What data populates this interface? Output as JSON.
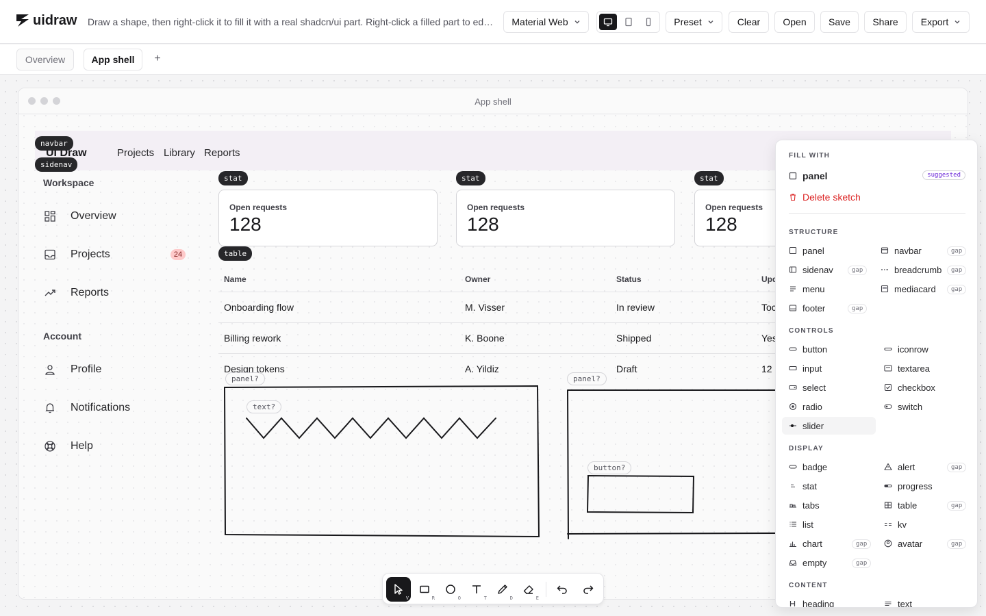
{
  "app": {
    "logo_text": "uidraw",
    "tagline": "Draw a shape, then right-click it to fill it with a real shadcn/ui part. Right-click a filled part to edit…",
    "theme_select": "Material Web",
    "preset_label": "Preset",
    "clear_label": "Clear",
    "open_label": "Open",
    "save_label": "Save",
    "share_label": "Share",
    "export_label": "Export"
  },
  "page_tabs": [
    {
      "label": "Overview",
      "active": false
    },
    {
      "label": "App shell",
      "active": true
    }
  ],
  "add_tab_label": "+",
  "frame": {
    "title": "App shell"
  },
  "mock": {
    "brand": "UI Draw",
    "nav_links": [
      "Projects",
      "Library",
      "Reports"
    ],
    "tags": {
      "navbar": "navbar",
      "sidenav": "sidenav",
      "stat": "stat",
      "table": "table"
    },
    "sidenav": {
      "workspace_heading": "Workspace",
      "workspace_items": [
        {
          "label": "Overview",
          "icon": "grid-icon"
        },
        {
          "label": "Projects",
          "icon": "inbox-icon"
        },
        {
          "label": "Reports",
          "icon": "trending-up-icon"
        }
      ],
      "projects_count": "24",
      "account_heading": "Account",
      "account_items": [
        {
          "label": "Profile",
          "icon": "user-icon"
        },
        {
          "label": "Notifications",
          "icon": "bell-icon"
        },
        {
          "label": "Help",
          "icon": "lifebuoy-icon"
        }
      ]
    },
    "stats": [
      {
        "label": "Open requests",
        "value": "128"
      },
      {
        "label": "Open requests",
        "value": "128"
      },
      {
        "label": "Open requests",
        "value": "128"
      }
    ],
    "table": {
      "columns": [
        "Name",
        "Owner",
        "Status",
        "Upd"
      ],
      "rows": [
        [
          "Onboarding flow",
          "M. Visser",
          "In review",
          "Toc"
        ],
        [
          "Billing rework",
          "K. Boone",
          "Shipped",
          "Yes"
        ],
        [
          "Design tokens",
          "A. Yildiz",
          "Draft",
          "12"
        ]
      ]
    }
  },
  "sketch_tags": {
    "panel_a": "panel?",
    "text": "text?",
    "panel_b": "panel?",
    "button": "button?"
  },
  "toolbar": {
    "tools": [
      {
        "name": "select",
        "key": "V"
      },
      {
        "name": "rectangle",
        "key": "R"
      },
      {
        "name": "ellipse",
        "key": "O"
      },
      {
        "name": "text",
        "key": "T"
      },
      {
        "name": "draw",
        "key": "D"
      },
      {
        "name": "erase",
        "key": "E"
      }
    ]
  },
  "fill_panel": {
    "fill_with_heading": "FILL WITH",
    "suggestion": {
      "label": "panel",
      "badge": "suggested"
    },
    "delete_label": "Delete sketch",
    "structure_heading": "STRUCTURE",
    "structure": [
      {
        "label": "panel",
        "gap": false
      },
      {
        "label": "navbar",
        "gap": true
      },
      {
        "label": "sidenav",
        "gap": true
      },
      {
        "label": "breadcrumb",
        "gap": true
      },
      {
        "label": "menu",
        "gap": false
      },
      {
        "label": "mediacard",
        "gap": true
      },
      {
        "label": "footer",
        "gap": true
      }
    ],
    "controls_heading": "CONTROLS",
    "controls": [
      {
        "label": "button",
        "gap": false
      },
      {
        "label": "iconrow",
        "gap": false
      },
      {
        "label": "input",
        "gap": false
      },
      {
        "label": "textarea",
        "gap": false
      },
      {
        "label": "select",
        "gap": false
      },
      {
        "label": "checkbox",
        "gap": false
      },
      {
        "label": "radio",
        "gap": false
      },
      {
        "label": "switch",
        "gap": false
      },
      {
        "label": "slider",
        "gap": false
      }
    ],
    "display_heading": "DISPLAY",
    "display": [
      {
        "label": "badge",
        "gap": false
      },
      {
        "label": "alert",
        "gap": true
      },
      {
        "label": "stat",
        "gap": false
      },
      {
        "label": "progress",
        "gap": false
      },
      {
        "label": "tabs",
        "gap": false
      },
      {
        "label": "table",
        "gap": true
      },
      {
        "label": "list",
        "gap": false
      },
      {
        "label": "kv",
        "gap": false
      },
      {
        "label": "chart",
        "gap": true
      },
      {
        "label": "avatar",
        "gap": true
      },
      {
        "label": "empty",
        "gap": true
      }
    ],
    "content_heading": "CONTENT",
    "content": [
      {
        "label": "heading",
        "gap": false
      },
      {
        "label": "text",
        "gap": false
      }
    ],
    "gap_label": "gap"
  },
  "colors": {
    "danger": "#dc2626",
    "accent_dark": "#18181b",
    "navbar_bg": "#f3eff5",
    "badge_bg": "#fecaca"
  }
}
